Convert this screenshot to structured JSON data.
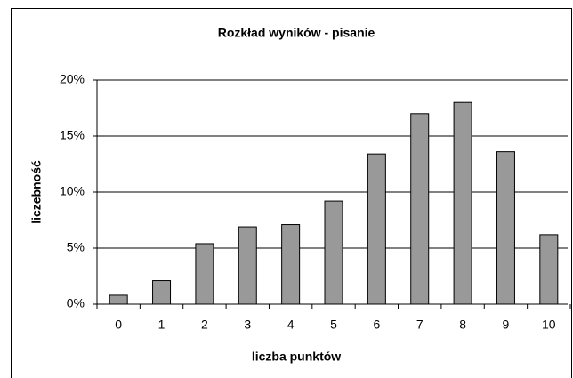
{
  "chart_data": {
    "type": "bar",
    "title": "Rozkład wyników - pisanie",
    "x_label": "liczba punktów",
    "y_label": "liczebność",
    "categories": [
      "0",
      "1",
      "2",
      "3",
      "4",
      "5",
      "6",
      "7",
      "8",
      "9",
      "10"
    ],
    "values": [
      0.8,
      2.1,
      5.4,
      6.9,
      7.1,
      9.2,
      13.4,
      17.0,
      18.0,
      13.6,
      6.2
    ],
    "color": "#999999",
    "ylim": [
      0,
      20
    ],
    "yticks": [
      {
        "value": 0,
        "label": "0%"
      },
      {
        "value": 5,
        "label": "5%"
      },
      {
        "value": 10,
        "label": "10%"
      },
      {
        "value": 15,
        "label": "15%"
      },
      {
        "value": 20,
        "label": "20%"
      }
    ],
    "grid": true
  }
}
